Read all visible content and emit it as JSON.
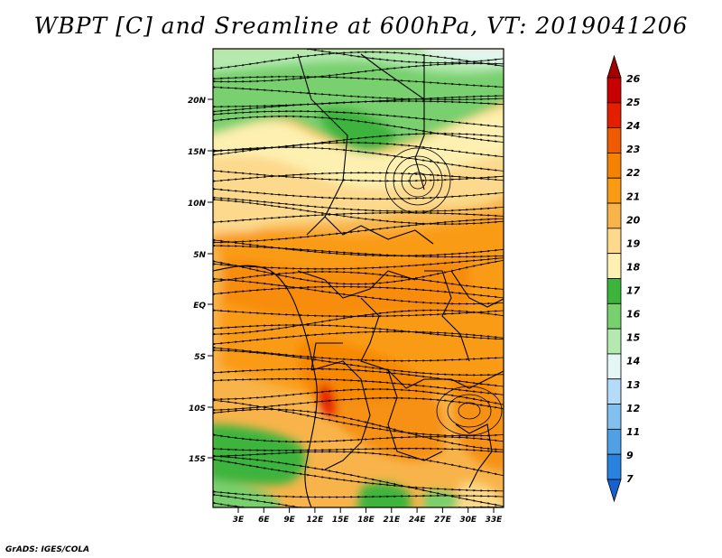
{
  "title": "WBPT [C] and Sreamline at 600hPa, VT: 2019041206",
  "footer": "GrADS: IGES/COLA",
  "map": {
    "lat_labels": [
      "20N",
      "15N",
      "10N",
      "5N",
      "EQ",
      "5S",
      "10S",
      "15S"
    ],
    "lon_labels": [
      "3E",
      "6E",
      "9E",
      "12E",
      "15E",
      "18E",
      "21E",
      "24E",
      "27E",
      "30E",
      "33E"
    ]
  },
  "colorbar": {
    "labels": [
      "26",
      "25",
      "24",
      "23",
      "22",
      "21",
      "20",
      "19",
      "18",
      "17",
      "16",
      "15",
      "14",
      "13",
      "12",
      "11",
      "9",
      "7"
    ],
    "colors": [
      "#a50000",
      "#c80000",
      "#e61e00",
      "#f05a00",
      "#f58200",
      "#fa9b14",
      "#f8b44a",
      "#fcd98c",
      "#fdf0b0",
      "#3cb43c",
      "#78d06e",
      "#b4eab0",
      "#e4f7f4",
      "#b4dcf8",
      "#82c0f0",
      "#50a0e6",
      "#2882de",
      "#1660d2"
    ]
  }
}
